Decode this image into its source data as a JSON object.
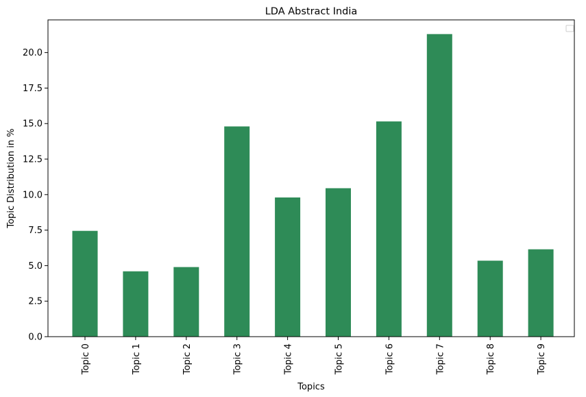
{
  "chart_data": {
    "type": "bar",
    "title": "LDA Abstract India",
    "xlabel": "Topics",
    "ylabel": "Topic Distribution in %",
    "categories": [
      "Topic 0",
      "Topic 1",
      "Topic 2",
      "Topic 3",
      "Topic 4",
      "Topic 5",
      "Topic 6",
      "Topic 7",
      "Topic 8",
      "Topic 9"
    ],
    "values": [
      7.45,
      4.6,
      4.9,
      14.8,
      9.8,
      10.45,
      15.15,
      21.3,
      5.35,
      6.15
    ],
    "ylim": [
      0,
      22.3
    ],
    "yticks": [
      "0.0",
      "2.5",
      "5.0",
      "7.5",
      "10.0",
      "12.5",
      "15.0",
      "17.5",
      "20.0"
    ],
    "bar_color": "#2e8b57",
    "grid": false,
    "legend": "top-right (empty)"
  }
}
